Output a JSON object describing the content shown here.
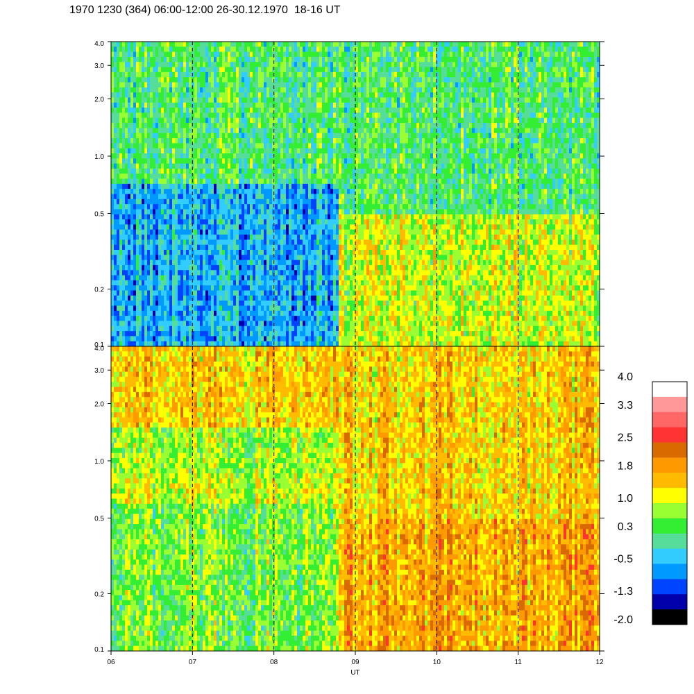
{
  "title": "1970 1230 (364) 06:00-12:00 26-30.12.1970  18-16 UT",
  "chart_data": [
    {
      "type": "heatmap",
      "panel": "top",
      "ylim": [
        0.1,
        4.0
      ],
      "yscale": "log",
      "y_ticks": [
        "4.0",
        "3.0",
        "2.0",
        "1.0",
        "0.5",
        "0.2",
        "0.1"
      ],
      "y_tick_values": [
        4.0,
        3.0,
        2.0,
        1.0,
        0.5,
        0.2,
        0.1
      ],
      "xlim": [
        6,
        12
      ],
      "dashed_vertical_lines_at": [
        7,
        8,
        9,
        10,
        11
      ],
      "regions": [
        {
          "x_from": 6.0,
          "x_to": 8.8,
          "y_from": 0.1,
          "y_to": 0.7,
          "level": -0.5
        },
        {
          "x_from": 6.0,
          "x_to": 8.8,
          "y_from": 0.7,
          "y_to": 4.0,
          "level": 0.3
        },
        {
          "x_from": 8.8,
          "x_to": 12.0,
          "y_from": 0.1,
          "y_to": 0.5,
          "level": 1.0
        },
        {
          "x_from": 8.8,
          "x_to": 12.0,
          "y_from": 0.5,
          "y_to": 4.0,
          "level": 0.3
        }
      ]
    },
    {
      "type": "heatmap",
      "panel": "bottom",
      "ylim": [
        0.1,
        4.0
      ],
      "yscale": "log",
      "y_ticks": [
        "4.0",
        "3.0",
        "2.0",
        "1.0",
        "0.5",
        "0.2",
        "0.1"
      ],
      "y_tick_values": [
        4.0,
        3.0,
        2.0,
        1.0,
        0.5,
        0.2,
        0.1
      ],
      "xlim": [
        6,
        12
      ],
      "x_ticks": [
        "06",
        "07",
        "08",
        "09",
        "10",
        "11",
        "12"
      ],
      "x_tick_values": [
        6,
        7,
        8,
        9,
        10,
        11,
        12
      ],
      "xlabel": "UT",
      "dashed_vertical_lines_at": [
        7,
        8,
        9,
        10,
        11
      ],
      "regions": [
        {
          "x_from": 6.0,
          "x_to": 8.8,
          "y_from": 0.1,
          "y_to": 0.6,
          "level": 0.6
        },
        {
          "x_from": 6.0,
          "x_to": 8.8,
          "y_from": 0.6,
          "y_to": 0.85,
          "level": 1.0
        },
        {
          "x_from": 6.0,
          "x_to": 8.8,
          "y_from": 0.85,
          "y_to": 1.5,
          "level": 0.8
        },
        {
          "x_from": 6.0,
          "x_to": 8.8,
          "y_from": 1.5,
          "y_to": 4.0,
          "level": 1.5
        },
        {
          "x_from": 8.8,
          "x_to": 12.0,
          "y_from": 0.1,
          "y_to": 0.5,
          "level": 1.8
        },
        {
          "x_from": 8.8,
          "x_to": 12.0,
          "y_from": 0.5,
          "y_to": 4.0,
          "level": 1.5
        }
      ]
    }
  ],
  "colorbar": {
    "labels": [
      "4.0",
      "3.3",
      "2.5",
      "1.8",
      "1.0",
      "0.3",
      "-0.5",
      "-1.3",
      "-2.0"
    ],
    "label_values": [
      4.0,
      3.3,
      2.5,
      1.8,
      1.0,
      0.3,
      -0.5,
      -1.3,
      -2.0
    ],
    "vmin": -2.0,
    "vmax": 4.0,
    "colors_top_to_bottom": [
      "#ffffff",
      "#ff9999",
      "#ff6666",
      "#ff3333",
      "#d96a00",
      "#ff9900",
      "#ffbb00",
      "#ffff00",
      "#99ff33",
      "#33ee33",
      "#55dd99",
      "#33ccff",
      "#0099ff",
      "#0044ff",
      "#0000aa",
      "#000000"
    ]
  }
}
